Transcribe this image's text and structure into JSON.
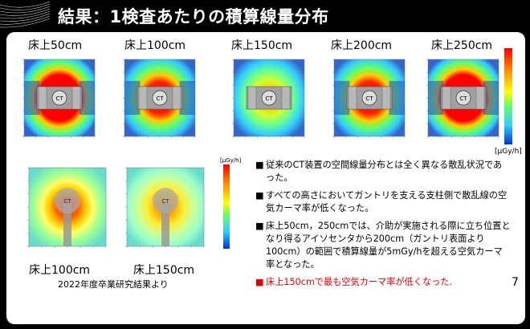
{
  "slide": {
    "title": "結果：1検査あたりの積算線量分布",
    "unit_label": "[μGy/h]",
    "colorbar_label": "[μGy/h]",
    "top_heatmaps": [
      {
        "caption": "床上50cm"
      },
      {
        "caption": "床上100cm"
      },
      {
        "caption": "床上150cm"
      },
      {
        "caption": "床上200cm"
      },
      {
        "caption": "床上250cm"
      }
    ],
    "bottom_heatmaps": [
      {
        "caption": "床上100cm"
      },
      {
        "caption": "床上150cm"
      }
    ],
    "ct_label": "CT",
    "bullets": [
      {
        "marker": "■",
        "text": "従来のCT装置の空間線量分布とは全く異なる散乱状況であった。",
        "highlight": false
      },
      {
        "marker": "■",
        "text": "すべての高さにおいてガントリを支える支柱側で散乱線の空気カーマ率が低くなった。",
        "highlight": false
      },
      {
        "marker": "■",
        "text": "床上50cm，250cmでは、介助が実施される際に立ち位置となり得るアイソセンタから200cm（ガントリ表面より100cm）の範囲で積算線量が5mGy/hを超える空気カーマ率となった。",
        "highlight": false
      },
      {
        "marker": "■",
        "text": "床上150cmで最も空気カーマ率が低くなった.",
        "highlight": true
      }
    ],
    "source_note": "2022年度卒業研究結果より",
    "page_number": "7",
    "colors": {
      "red": "#e00000",
      "header_bg": "#000000"
    }
  }
}
